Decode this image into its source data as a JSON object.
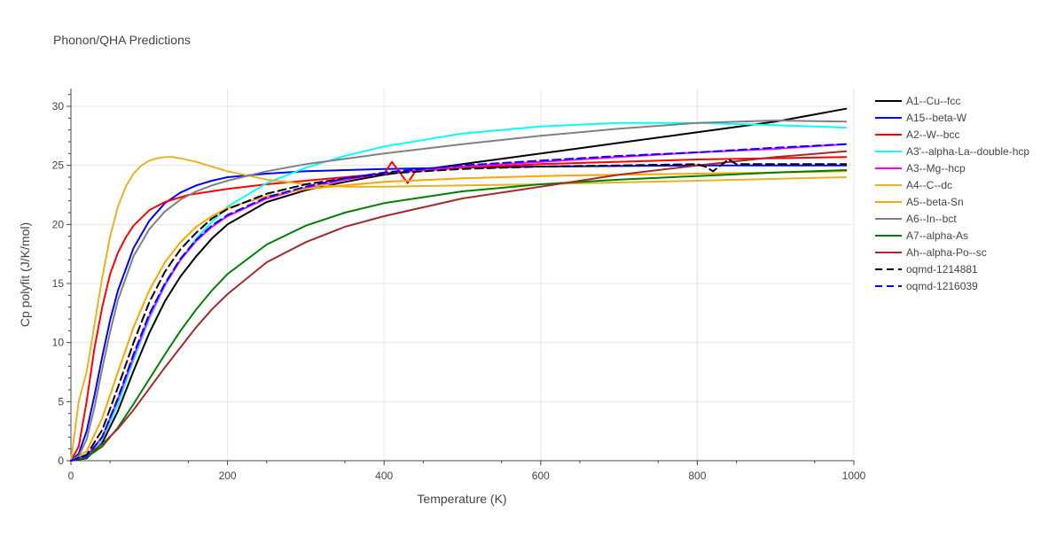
{
  "chart_data": {
    "type": "line",
    "title": "Phonon/QHA Predictions",
    "xlabel": "Temperature (K)",
    "ylabel": "Cp polyfit (J/K/mol)",
    "xlim": [
      0,
      1000
    ],
    "ylim": [
      0,
      31.5
    ],
    "xticks": [
      0,
      200,
      400,
      600,
      800,
      1000
    ],
    "yticks": [
      0,
      5,
      10,
      15,
      20,
      25,
      30
    ],
    "grid": true,
    "legend_position": "right",
    "series": [
      {
        "name": "A1--Cu--fcc",
        "color": "#000000",
        "dash": "solid",
        "x": [
          0,
          20,
          40,
          60,
          80,
          100,
          120,
          140,
          160,
          180,
          200,
          250,
          300,
          350,
          400,
          500,
          600,
          700,
          800,
          900,
          990
        ],
        "y": [
          0,
          0.2,
          1.5,
          4.2,
          7.6,
          10.8,
          13.5,
          15.6,
          17.3,
          18.8,
          20.0,
          21.9,
          22.9,
          23.6,
          24.2,
          25.1,
          26.0,
          26.9,
          27.8,
          28.7,
          29.8
        ]
      },
      {
        "name": "A15--beta-W",
        "color": "#0000ff",
        "dash": "solid",
        "x": [
          0,
          10,
          20,
          30,
          40,
          50,
          60,
          80,
          100,
          120,
          140,
          160,
          180,
          200,
          250,
          300,
          400,
          500,
          600,
          800,
          990
        ],
        "y": [
          0,
          0.6,
          2.5,
          5.5,
          8.8,
          11.9,
          14.4,
          18.0,
          20.3,
          21.8,
          22.7,
          23.3,
          23.7,
          24.0,
          24.3,
          24.5,
          24.7,
          24.8,
          24.9,
          25.0,
          25.0
        ]
      },
      {
        "name": "A2--W--bcc",
        "color": "#ff0000",
        "dash": "solid",
        "x": [
          0,
          10,
          20,
          30,
          40,
          50,
          60,
          70,
          80,
          100,
          120,
          150,
          200,
          250,
          300,
          350,
          400,
          410,
          420,
          430,
          440,
          500,
          600,
          800,
          990
        ],
        "y": [
          0,
          1.2,
          5.0,
          9.5,
          13.0,
          15.8,
          17.6,
          18.9,
          19.9,
          21.2,
          21.9,
          22.5,
          23.0,
          23.4,
          23.7,
          24.0,
          24.3,
          25.3,
          24.4,
          23.5,
          24.5,
          24.8,
          25.1,
          25.5,
          25.7
        ]
      },
      {
        "name": "A3'--alpha-La--double-hcp",
        "color": "#00ffff",
        "dash": "solid",
        "x": [
          0,
          20,
          40,
          60,
          80,
          100,
          120,
          140,
          160,
          180,
          200,
          250,
          300,
          350,
          400,
          500,
          600,
          700,
          800,
          900,
          990
        ],
        "y": [
          0,
          0.3,
          1.8,
          4.8,
          8.5,
          12.0,
          14.8,
          17.0,
          18.8,
          20.2,
          21.5,
          23.5,
          24.8,
          25.8,
          26.6,
          27.7,
          28.3,
          28.6,
          28.6,
          28.4,
          28.2
        ]
      },
      {
        "name": "A3--Mg--hcp",
        "color": "#ff00ff",
        "dash": "solid",
        "x": [
          0,
          20,
          40,
          60,
          80,
          100,
          120,
          140,
          160,
          180,
          200,
          250,
          300,
          350,
          400,
          500,
          600,
          700,
          800,
          900,
          990
        ],
        "y": [
          0,
          0.4,
          2.0,
          5.2,
          8.8,
          12.2,
          14.9,
          17.0,
          18.6,
          19.8,
          20.7,
          22.2,
          23.1,
          23.8,
          24.3,
          24.9,
          25.3,
          25.7,
          26.1,
          26.4,
          26.8
        ]
      },
      {
        "name": "A4--C--dc",
        "color": "#e6b422",
        "dash": "solid",
        "x": [
          0,
          5,
          10,
          20,
          30,
          40,
          50,
          60,
          70,
          80,
          90,
          100,
          110,
          120,
          130,
          140,
          160,
          180,
          200,
          250,
          300,
          350,
          400,
          600,
          800,
          990
        ],
        "y": [
          0,
          2.5,
          5.0,
          7.5,
          11.5,
          15.5,
          19.0,
          21.5,
          23.2,
          24.3,
          25.0,
          25.4,
          25.6,
          25.7,
          25.7,
          25.6,
          25.3,
          24.9,
          24.5,
          23.8,
          23.4,
          23.2,
          23.2,
          23.4,
          23.7,
          24.0
        ]
      },
      {
        "name": "A5--beta-Sn",
        "color": "#ffa500",
        "dash": "solid",
        "x": [
          0,
          20,
          40,
          60,
          80,
          100,
          120,
          140,
          160,
          180,
          200,
          250,
          300,
          350,
          400,
          500,
          600,
          700,
          800,
          900,
          990
        ],
        "y": [
          0,
          0.8,
          3.6,
          7.5,
          11.3,
          14.4,
          16.8,
          18.5,
          19.8,
          20.7,
          21.4,
          22.4,
          23.0,
          23.3,
          23.6,
          23.9,
          24.1,
          24.2,
          24.3,
          24.4,
          24.5
        ]
      },
      {
        "name": "A6--In--bct",
        "color": "#808080",
        "dash": "solid",
        "x": [
          0,
          10,
          20,
          30,
          40,
          50,
          60,
          80,
          100,
          120,
          140,
          160,
          180,
          200,
          250,
          300,
          400,
          500,
          600,
          700,
          800,
          900,
          990
        ],
        "y": [
          0,
          0.4,
          1.8,
          4.5,
          7.8,
          10.9,
          13.6,
          17.3,
          19.6,
          21.1,
          22.1,
          22.8,
          23.3,
          23.7,
          24.5,
          25.1,
          26.0,
          26.8,
          27.5,
          28.1,
          28.6,
          28.8,
          28.7
        ]
      },
      {
        "name": "A7--alpha-As",
        "color": "#008000",
        "dash": "solid",
        "x": [
          0,
          20,
          40,
          60,
          80,
          100,
          120,
          140,
          160,
          180,
          200,
          250,
          300,
          350,
          400,
          500,
          600,
          700,
          800,
          900,
          990
        ],
        "y": [
          0,
          0.3,
          1.2,
          2.8,
          4.8,
          6.9,
          9.0,
          11.0,
          12.8,
          14.4,
          15.8,
          18.3,
          19.9,
          21.0,
          21.8,
          22.8,
          23.4,
          23.8,
          24.1,
          24.4,
          24.6
        ]
      },
      {
        "name": "Ah--alpha-Po--sc",
        "color": "#a52a2a",
        "dash": "solid",
        "x": [
          0,
          20,
          40,
          60,
          80,
          100,
          120,
          140,
          160,
          180,
          200,
          250,
          300,
          350,
          400,
          500,
          600,
          700,
          800,
          900,
          990
        ],
        "y": [
          0,
          0.5,
          1.4,
          2.7,
          4.3,
          6.1,
          7.9,
          9.6,
          11.3,
          12.8,
          14.1,
          16.8,
          18.5,
          19.8,
          20.7,
          22.2,
          23.2,
          24.2,
          25.0,
          25.7,
          26.2
        ]
      },
      {
        "name": "oqmd-1214881",
        "color": "#000000",
        "dash": "dash",
        "x": [
          0,
          20,
          40,
          60,
          80,
          100,
          120,
          140,
          160,
          180,
          200,
          250,
          300,
          350,
          400,
          500,
          600,
          700,
          800,
          810,
          820,
          830,
          840,
          850,
          900,
          990
        ],
        "y": [
          0,
          0.5,
          2.6,
          6.2,
          10.0,
          13.4,
          16.0,
          17.9,
          19.3,
          20.5,
          21.3,
          22.6,
          23.4,
          23.9,
          24.3,
          24.7,
          24.9,
          25.0,
          25.1,
          24.9,
          24.5,
          25.0,
          25.5,
          25.1,
          25.1,
          25.1
        ]
      },
      {
        "name": "oqmd-1216039",
        "color": "#0000ff",
        "dash": "dash",
        "x": [
          0,
          20,
          40,
          60,
          80,
          100,
          120,
          140,
          160,
          180,
          200,
          250,
          300,
          350,
          400,
          500,
          600,
          700,
          800,
          900,
          990
        ],
        "y": [
          0,
          0.4,
          2.0,
          5.3,
          9.0,
          12.4,
          15.0,
          17.1,
          18.7,
          19.9,
          20.8,
          22.3,
          23.2,
          23.9,
          24.4,
          25.0,
          25.4,
          25.8,
          26.1,
          26.5,
          26.8
        ]
      }
    ]
  }
}
